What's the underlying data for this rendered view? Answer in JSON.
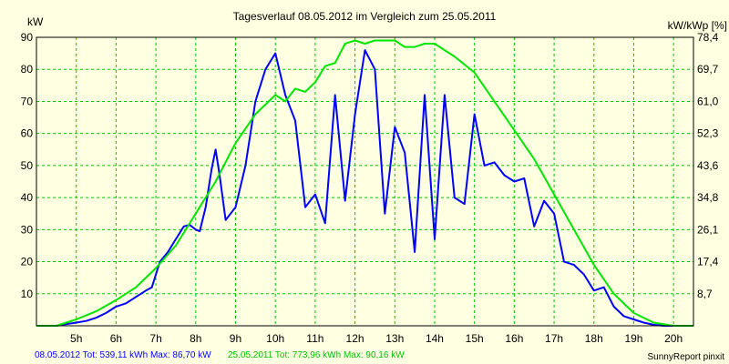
{
  "chart_data": {
    "type": "line",
    "title": "Tagesverlauf 08.05.2012 im Vergleich zum 25.05.2011",
    "ylabel_left": "kW",
    "ylabel_right": "kW/kWp [%]",
    "x_ticks": [
      "5h",
      "6h",
      "7h",
      "8h",
      "9h",
      "10h",
      "11h",
      "12h",
      "13h",
      "14h",
      "15h",
      "16h",
      "17h",
      "18h",
      "19h",
      "20h"
    ],
    "x_tick_values": [
      5,
      6,
      7,
      8,
      9,
      10,
      11,
      12,
      13,
      14,
      15,
      16,
      17,
      18,
      19,
      20
    ],
    "xlim": [
      4.0,
      20.5
    ],
    "ylim": [
      0,
      90
    ],
    "y_ticks": [
      10,
      20,
      30,
      40,
      50,
      60,
      70,
      80,
      90
    ],
    "y_ticks_right": [
      "8,7",
      "17,4",
      "26,1",
      "34,8",
      "43,6",
      "52,3",
      "61,0",
      "69,7",
      "78,4"
    ],
    "grid": true,
    "colors": {
      "background": "#ffffe1",
      "plot_bg": "#ffffe1",
      "grid": "#00c800",
      "series1": "#0000ff",
      "series2": "#00e600"
    },
    "series": [
      {
        "name": "08.05.2012",
        "color": "#0000ff",
        "points": [
          [
            4.0,
            0
          ],
          [
            4.5,
            0
          ],
          [
            4.75,
            0.5
          ],
          [
            5.0,
            1
          ],
          [
            5.25,
            1.5
          ],
          [
            5.5,
            2.5
          ],
          [
            5.75,
            4
          ],
          [
            6.0,
            6
          ],
          [
            6.25,
            7
          ],
          [
            6.5,
            9
          ],
          [
            6.75,
            11
          ],
          [
            6.9,
            12
          ],
          [
            7.0,
            16
          ],
          [
            7.1,
            20
          ],
          [
            7.3,
            23
          ],
          [
            7.5,
            27
          ],
          [
            7.7,
            31
          ],
          [
            7.85,
            31.5
          ],
          [
            8.0,
            30
          ],
          [
            8.1,
            29.5
          ],
          [
            8.25,
            37
          ],
          [
            8.4,
            49
          ],
          [
            8.5,
            55
          ],
          [
            8.6,
            47
          ],
          [
            8.75,
            33
          ],
          [
            9.0,
            37
          ],
          [
            9.25,
            50
          ],
          [
            9.5,
            70
          ],
          [
            9.75,
            80
          ],
          [
            10.0,
            85
          ],
          [
            10.25,
            72
          ],
          [
            10.5,
            64
          ],
          [
            10.75,
            37
          ],
          [
            11.0,
            41
          ],
          [
            11.25,
            32
          ],
          [
            11.5,
            72
          ],
          [
            11.75,
            39
          ],
          [
            12.0,
            66
          ],
          [
            12.25,
            86
          ],
          [
            12.5,
            80
          ],
          [
            12.75,
            35
          ],
          [
            13.0,
            62
          ],
          [
            13.25,
            54
          ],
          [
            13.5,
            23
          ],
          [
            13.75,
            72
          ],
          [
            14.0,
            27
          ],
          [
            14.25,
            72
          ],
          [
            14.5,
            40
          ],
          [
            14.75,
            38
          ],
          [
            15.0,
            66
          ],
          [
            15.25,
            50
          ],
          [
            15.5,
            51
          ],
          [
            15.75,
            47
          ],
          [
            16.0,
            45
          ],
          [
            16.25,
            46
          ],
          [
            16.5,
            31
          ],
          [
            16.75,
            39
          ],
          [
            17.0,
            35
          ],
          [
            17.25,
            20
          ],
          [
            17.5,
            19
          ],
          [
            17.75,
            16
          ],
          [
            18.0,
            11
          ],
          [
            18.25,
            12
          ],
          [
            18.5,
            6
          ],
          [
            18.75,
            3
          ],
          [
            19.0,
            2
          ],
          [
            19.25,
            1
          ],
          [
            19.5,
            0.3
          ],
          [
            19.75,
            0
          ],
          [
            20.0,
            0
          ],
          [
            20.5,
            0
          ]
        ]
      },
      {
        "name": "25.05.2011",
        "color": "#00e600",
        "points": [
          [
            4.0,
            0
          ],
          [
            4.5,
            0
          ],
          [
            4.75,
            1
          ],
          [
            5.0,
            2
          ],
          [
            5.5,
            4.5
          ],
          [
            6.0,
            8
          ],
          [
            6.5,
            12
          ],
          [
            7.0,
            18
          ],
          [
            7.5,
            25
          ],
          [
            8.0,
            35
          ],
          [
            8.5,
            45
          ],
          [
            9.0,
            57
          ],
          [
            9.5,
            66
          ],
          [
            10.0,
            72
          ],
          [
            10.25,
            70
          ],
          [
            10.5,
            74
          ],
          [
            10.75,
            73
          ],
          [
            11.0,
            76
          ],
          [
            11.25,
            81
          ],
          [
            11.5,
            82
          ],
          [
            11.75,
            88
          ],
          [
            12.0,
            89
          ],
          [
            12.25,
            88
          ],
          [
            12.5,
            89
          ],
          [
            13.0,
            89
          ],
          [
            13.25,
            87
          ],
          [
            13.5,
            87
          ],
          [
            13.75,
            88
          ],
          [
            14.0,
            88
          ],
          [
            14.25,
            86
          ],
          [
            14.5,
            84
          ],
          [
            15.0,
            79
          ],
          [
            15.5,
            70
          ],
          [
            16.0,
            61
          ],
          [
            16.5,
            52
          ],
          [
            17.0,
            41
          ],
          [
            17.5,
            30
          ],
          [
            18.0,
            19
          ],
          [
            18.5,
            10
          ],
          [
            19.0,
            4
          ],
          [
            19.5,
            1
          ],
          [
            20.0,
            0
          ],
          [
            20.5,
            0
          ]
        ]
      }
    ],
    "footer": {
      "series1_summary": "08.05.2012 Tot: 539,11 kWh Max: 86,70 kW",
      "series2_summary": "25.05.2011 Tot: 773,96 kWh Max: 90,16 kW",
      "credit": "SunnyReport pinxit"
    }
  }
}
